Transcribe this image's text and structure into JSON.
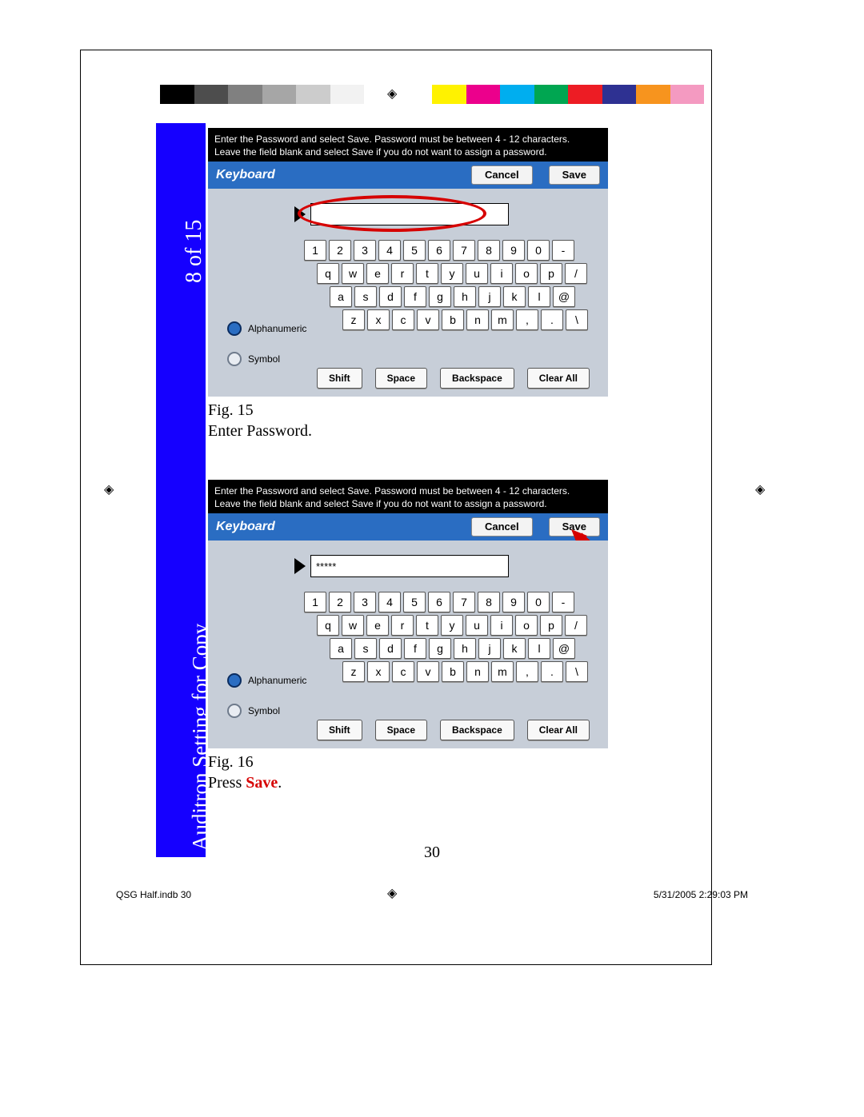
{
  "sidebar": {
    "page_step": "8 of 15",
    "section_title": "Auditron Setting for Copy"
  },
  "color_bar": {
    "colors": [
      "#000000",
      "#4d4d4d",
      "#808080",
      "#a6a6a6",
      "#cccccc",
      "#f2f2f2",
      "#ffffff",
      "#ffffff",
      "#fff200",
      "#ec008c",
      "#00aeef",
      "#00a651",
      "#ed1c24",
      "#2e3192",
      "#f7941e",
      "#f49ac1"
    ]
  },
  "screenshots": [
    {
      "instructions_l1": "Enter the Password and select Save.  Password must be between 4 - 12 characters.",
      "instructions_l2": "Leave the field blank and select Save if you do not want to assign a password.",
      "header_title": "Keyboard",
      "cancel": "Cancel",
      "save": "Save",
      "input_value": "",
      "mode_alpha": "Alphanumeric",
      "mode_symbol": "Symbol",
      "rows": [
        [
          "1",
          "2",
          "3",
          "4",
          "5",
          "6",
          "7",
          "8",
          "9",
          "0",
          "-"
        ],
        [
          "q",
          "w",
          "e",
          "r",
          "t",
          "y",
          "u",
          "i",
          "o",
          "p",
          "/"
        ],
        [
          "a",
          "s",
          "d",
          "f",
          "g",
          "h",
          "j",
          "k",
          "l",
          "@"
        ],
        [
          "z",
          "x",
          "c",
          "v",
          "b",
          "n",
          "m",
          ",",
          ".",
          "\\"
        ]
      ],
      "func": {
        "shift": "Shift",
        "space": "Space",
        "backspace": "Backspace",
        "clear": "Clear All"
      },
      "caption_fig": "Fig. 15",
      "caption_text": "Enter Password.",
      "annotation": "ellipse"
    },
    {
      "instructions_l1": "Enter the Password and select Save.  Password must be between 4 - 12 characters.",
      "instructions_l2": "Leave the field blank and select Save if you do not want to assign a password.",
      "header_title": "Keyboard",
      "cancel": "Cancel",
      "save": "Save",
      "input_value": "*****",
      "mode_alpha": "Alphanumeric",
      "mode_symbol": "Symbol",
      "rows": [
        [
          "1",
          "2",
          "3",
          "4",
          "5",
          "6",
          "7",
          "8",
          "9",
          "0",
          "-"
        ],
        [
          "q",
          "w",
          "e",
          "r",
          "t",
          "y",
          "u",
          "i",
          "o",
          "p",
          "/"
        ],
        [
          "a",
          "s",
          "d",
          "f",
          "g",
          "h",
          "j",
          "k",
          "l",
          "@"
        ],
        [
          "z",
          "x",
          "c",
          "v",
          "b",
          "n",
          "m",
          ",",
          ".",
          "\\"
        ]
      ],
      "func": {
        "shift": "Shift",
        "space": "Space",
        "backspace": "Backspace",
        "clear": "Clear All"
      },
      "caption_fig": "Fig. 16",
      "caption_text_pre": "Press ",
      "caption_text_hl": "Save",
      "caption_text_post": ".",
      "annotation": "arrow"
    }
  ],
  "page_number": "30",
  "footer": {
    "left": "QSG Half.indb   30",
    "right": "5/31/2005   2:29:03 PM"
  },
  "styling": {
    "sidebar_bg": "#1500ff",
    "kb_header_bg": "#2a6dc2",
    "kb_body_bg": "#c7ced8",
    "annotation_color": "#d60000"
  }
}
